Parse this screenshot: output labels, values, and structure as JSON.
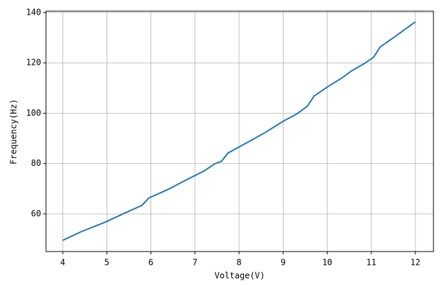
{
  "chart_data": {
    "type": "line",
    "xlabel": "Voltage(V)",
    "ylabel": "Frequency(Hz)",
    "x": [
      4.0,
      4.4,
      4.8,
      5.0,
      5.4,
      5.8,
      5.95,
      6.4,
      6.8,
      7.2,
      7.45,
      7.6,
      7.75,
      8.2,
      8.6,
      9.0,
      9.3,
      9.55,
      9.7,
      10.0,
      10.35,
      10.55,
      10.85,
      11.05,
      11.2,
      11.55,
      12.0
    ],
    "series": [
      {
        "color": "#1f77b4",
        "values": [
          49.5,
          52.8,
          55.6,
          57.0,
          60.3,
          63.4,
          66.3,
          69.8,
          73.5,
          77.0,
          79.9,
          80.9,
          84.2,
          88.5,
          92.4,
          96.8,
          99.6,
          102.8,
          106.8,
          110.4,
          114.2,
          116.8,
          119.8,
          122.2,
          126.3,
          130.6,
          136.3
        ]
      }
    ],
    "xlim": [
      3.62,
      12.41
    ],
    "ylim": [
      45.05,
      140.55
    ],
    "xticks": [
      4,
      5,
      6,
      7,
      8,
      9,
      10,
      11,
      12
    ],
    "yticks": [
      60,
      80,
      100,
      120,
      140
    ],
    "grid": true
  }
}
